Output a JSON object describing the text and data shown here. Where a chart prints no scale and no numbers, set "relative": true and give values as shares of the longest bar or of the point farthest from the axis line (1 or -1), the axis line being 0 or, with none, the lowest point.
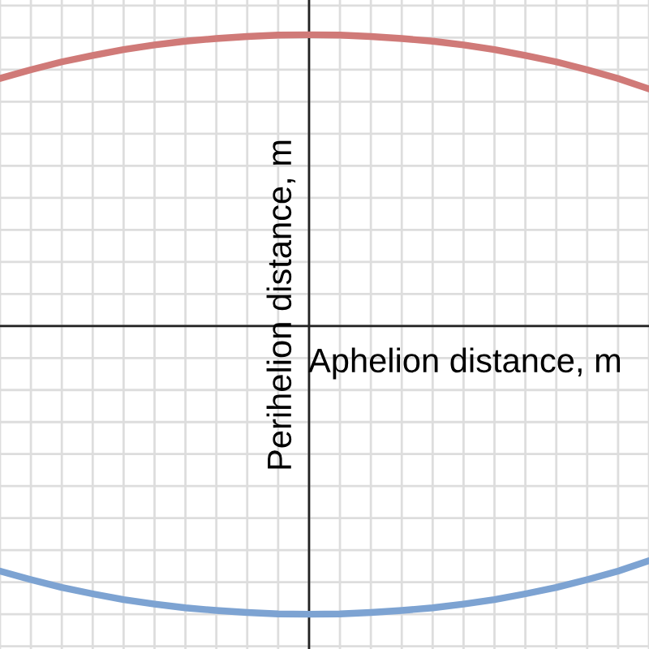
{
  "chart_data": {
    "type": "line",
    "relative": true,
    "grid": true,
    "xlabel": "Aphelion distance, m",
    "ylabel": "Perihelion distance, m",
    "categories": [
      null,
      null,
      null,
      null,
      null,
      null,
      null,
      null,
      null,
      null,
      null,
      null,
      null,
      null,
      null,
      null,
      null,
      null,
      null,
      null,
      null,
      null
    ],
    "series": [
      {
        "color": "#d07a78",
        "values": [
          0.85,
          0.88,
          0.907,
          0.929,
          0.949,
          0.965,
          0.978,
          0.987,
          0.994,
          0.999,
          1,
          0.999,
          0.994,
          0.987,
          0.978,
          0.965,
          0.949,
          0.929,
          0.907,
          0.88,
          0.85,
          0.814
        ]
      },
      {
        "color": "#7da3d2",
        "values": [
          -0.842,
          -0.871,
          -0.898,
          -0.92,
          -0.94,
          -0.955,
          -0.968,
          -0.977,
          -0.984,
          -0.989,
          -0.99,
          -0.989,
          -0.984,
          -0.977,
          -0.968,
          -0.955,
          -0.94,
          -0.92,
          -0.898,
          -0.871,
          -0.842,
          -0.806
        ]
      }
    ]
  }
}
